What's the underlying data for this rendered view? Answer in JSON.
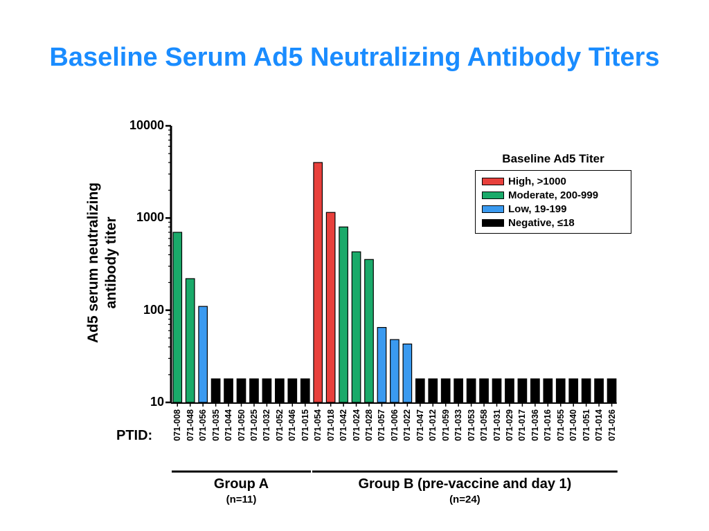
{
  "title": "Baseline Serum Ad5 Neutralizing Antibody Titers",
  "chart_data": {
    "type": "bar",
    "yscale": "log",
    "ylim": [
      10,
      10000
    ],
    "yticks": [
      "10",
      "100",
      "1000",
      "10000"
    ],
    "ylabel_lines": [
      "Ad5 serum neutralizing",
      "antibody titer"
    ],
    "xlabel": "PTID:",
    "categories": [
      "071-008",
      "071-048",
      "071-056",
      "071-035",
      "071-044",
      "071-050",
      "071-025",
      "071-032",
      "071-052",
      "071-046",
      "071-015",
      "071-054",
      "071-018",
      "071-042",
      "071-024",
      "071-028",
      "071-057",
      "071-006",
      "071-022",
      "071-047",
      "071-012",
      "071-059",
      "071-033",
      "071-053",
      "071-058",
      "071-031",
      "071-029",
      "071-017",
      "071-036",
      "071-016",
      "071-055",
      "071-040",
      "071-051",
      "071-014",
      "071-026"
    ],
    "values": [
      700,
      220,
      110,
      18,
      18,
      18,
      18,
      18,
      18,
      18,
      18,
      4000,
      1150,
      800,
      430,
      355,
      65,
      48,
      43,
      18,
      18,
      18,
      18,
      18,
      18,
      18,
      18,
      18,
      18,
      18,
      18,
      18,
      18,
      18,
      18
    ],
    "classes": [
      "moderate",
      "moderate",
      "low",
      "negative",
      "negative",
      "negative",
      "negative",
      "negative",
      "negative",
      "negative",
      "negative",
      "high",
      "high",
      "moderate",
      "moderate",
      "moderate",
      "low",
      "low",
      "low",
      "negative",
      "negative",
      "negative",
      "negative",
      "negative",
      "negative",
      "negative",
      "negative",
      "negative",
      "negative",
      "negative",
      "negative",
      "negative",
      "negative",
      "negative",
      "negative"
    ],
    "legend": {
      "title": "Baseline Ad5 Titer",
      "placement": "top-right",
      "items": [
        {
          "key": "high",
          "label": "High, >1000",
          "color": "#e8403c"
        },
        {
          "key": "moderate",
          "label": "Moderate, 200-999",
          "color": "#1aaa6a"
        },
        {
          "key": "low",
          "label": "Low, 19-199",
          "color": "#3a9af0"
        },
        {
          "key": "negative",
          "label": "Negative, ≤18",
          "color": "#000000"
        }
      ]
    },
    "groups": [
      {
        "name": "Group A",
        "n": "(n=11)",
        "count": 11
      },
      {
        "name": "Group B (pre-vaccine and day 1)",
        "n": "(n=24)",
        "count": 24
      }
    ]
  }
}
